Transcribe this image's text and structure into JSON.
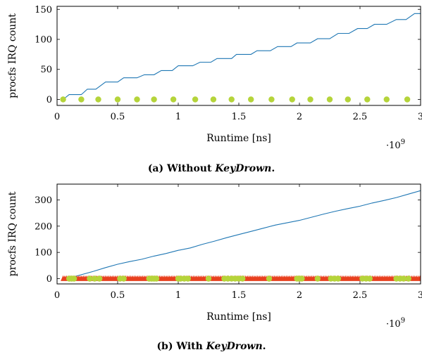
{
  "colors": {
    "series_blue": "#1f77b4",
    "dots": "#b5d43a",
    "markers_red": "#e8401f"
  },
  "chart_data": [
    {
      "type": "line",
      "caption_prefix": "(a) Without ",
      "caption_em": "KeyDrown",
      "caption_suffix": ".",
      "xlabel": "Runtime [ns]",
      "ylabel": "procfs IRQ count",
      "x_multiplier": "·10",
      "x_multiplier_exp": "9",
      "xlim": [
        0,
        3
      ],
      "ylim": [
        -10,
        155
      ],
      "xticks": [
        0,
        0.5,
        1,
        1.5,
        2,
        2.5,
        3
      ],
      "yticks": [
        0,
        50,
        100,
        150
      ],
      "grid": false,
      "series": [
        {
          "style": "step-line",
          "color": "#1f77b4",
          "x": [
            0.05,
            0.1,
            0.2,
            0.25,
            0.32,
            0.4,
            0.5,
            0.55,
            0.66,
            0.72,
            0.8,
            0.86,
            0.95,
            1.0,
            1.12,
            1.18,
            1.27,
            1.32,
            1.44,
            1.48,
            1.6,
            1.65,
            1.76,
            1.82,
            1.93,
            1.98,
            2.09,
            2.15,
            2.25,
            2.32,
            2.41,
            2.48,
            2.56,
            2.62,
            2.72,
            2.8,
            2.88,
            2.95,
            3.0
          ],
          "y": [
            0,
            8,
            8,
            17,
            17,
            29,
            29,
            36,
            36,
            41,
            41,
            48,
            48,
            56,
            56,
            62,
            62,
            68,
            68,
            75,
            75,
            81,
            81,
            88,
            88,
            94,
            94,
            101,
            101,
            110,
            110,
            118,
            118,
            125,
            125,
            133,
            133,
            143,
            143
          ]
        },
        {
          "style": "dots",
          "color": "#b5d43a",
          "x": [
            0.05,
            0.2,
            0.34,
            0.5,
            0.66,
            0.8,
            0.96,
            1.14,
            1.29,
            1.44,
            1.6,
            1.77,
            1.94,
            2.09,
            2.25,
            2.4,
            2.56,
            2.72,
            2.89
          ],
          "y": [
            0,
            0,
            0,
            0,
            0,
            0,
            0,
            0,
            0,
            0,
            0,
            0,
            0,
            0,
            0,
            0,
            0,
            0,
            0
          ]
        }
      ]
    },
    {
      "type": "line",
      "caption_prefix": "(b) With ",
      "caption_em": "KeyDrown",
      "caption_suffix": ".",
      "xlabel": "Runtime [ns]",
      "ylabel": "procfs IRQ count",
      "x_multiplier": "·10",
      "x_multiplier_exp": "9",
      "xlim": [
        0,
        3
      ],
      "ylim": [
        -20,
        360
      ],
      "xticks": [
        0,
        0.5,
        1,
        1.5,
        2,
        2.5,
        3
      ],
      "yticks": [
        0,
        100,
        200,
        300
      ],
      "grid": false,
      "series": [
        {
          "style": "line",
          "color": "#1f77b4",
          "x": [
            0.1,
            0.2,
            0.3,
            0.4,
            0.5,
            0.6,
            0.7,
            0.8,
            0.9,
            1.0,
            1.1,
            1.2,
            1.3,
            1.4,
            1.5,
            1.6,
            1.7,
            1.8,
            1.9,
            2.0,
            2.1,
            2.2,
            2.3,
            2.4,
            2.5,
            2.6,
            2.7,
            2.8,
            2.9,
            3.0
          ],
          "y": [
            2,
            15,
            28,
            42,
            55,
            65,
            74,
            86,
            96,
            108,
            117,
            131,
            143,
            156,
            168,
            180,
            192,
            204,
            213,
            222,
            234,
            246,
            257,
            267,
            276,
            288,
            298,
            309,
            322,
            335
          ]
        },
        {
          "style": "markers",
          "color": "#e8401f",
          "x_range": [
            0.05,
            3.0
          ],
          "y_value": 0
        },
        {
          "style": "dots",
          "color": "#b5d43a",
          "x": [
            0.1,
            0.12,
            0.14,
            0.27,
            0.31,
            0.35,
            0.52,
            0.55,
            0.76,
            0.78,
            0.8,
            0.82,
            1.0,
            1.02,
            1.05,
            1.08,
            1.25,
            1.38,
            1.41,
            1.44,
            1.47,
            1.5,
            1.53,
            1.75,
            1.98,
            2.0,
            2.02,
            2.15,
            2.26,
            2.29,
            2.32,
            2.52,
            2.55,
            2.58,
            2.8,
            2.83,
            2.86,
            2.9
          ],
          "y": [
            0,
            0,
            0,
            0,
            0,
            0,
            0,
            0,
            0,
            0,
            0,
            0,
            0,
            0,
            0,
            0,
            0,
            0,
            0,
            0,
            0,
            0,
            0,
            0,
            0,
            0,
            0,
            0,
            0,
            0,
            0,
            0,
            0,
            0,
            0,
            0,
            0,
            0
          ]
        }
      ]
    }
  ]
}
